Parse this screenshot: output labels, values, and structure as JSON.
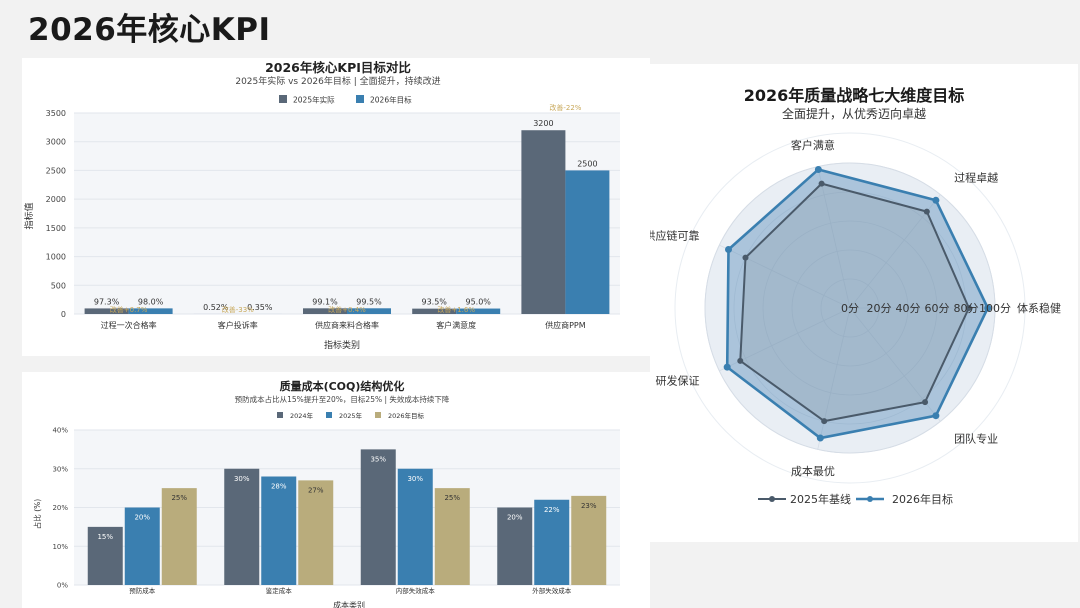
{
  "page_title": "2026年核心KPI",
  "colors": {
    "actual_2025": "#5a6878",
    "target_2026": "#3a7fb0",
    "y2024": "#5a6878",
    "y2025": "#3a7fb0",
    "target2026_coq": "#b9ac7c",
    "radar_base": "#4a5a6a",
    "radar_target": "#3a7fb0",
    "improve_label": "#c8a85a"
  },
  "chart_data": [
    {
      "id": "kpi",
      "type": "bar",
      "title": "2026年核心KPI目标对比",
      "subtitle": "2025年实际 vs 2026年目标 | 全面提升，持续改进",
      "xlabel": "指标类别",
      "ylabel": "指标值",
      "ylim": [
        0,
        3500
      ],
      "yticks": [
        0,
        500,
        1000,
        1500,
        2000,
        2500,
        3000,
        3500
      ],
      "categories": [
        "过程一次合格率",
        "客户投诉率",
        "供应商来料合格率",
        "客户满意度",
        "供应商PPM"
      ],
      "series": [
        {
          "name": "2025年实际",
          "values": [
            97.3,
            0.52,
            99.1,
            93.5,
            3200
          ],
          "labels": [
            "97.3%",
            "0.52%",
            "99.1%",
            "93.5%",
            "3200"
          ]
        },
        {
          "name": "2026年目标",
          "values": [
            98.0,
            0.35,
            99.5,
            95.0,
            2500
          ],
          "labels": [
            "98.0%",
            "0.35%",
            "99.5%",
            "95.0%",
            "2500"
          ]
        }
      ],
      "improvements": [
        "改善+0.7%",
        "改善-33%",
        "改善+0.4%",
        "改善+1.6%",
        "改善-22%"
      ]
    },
    {
      "id": "coq",
      "type": "bar",
      "title": "质量成本(COQ)结构优化",
      "subtitle": "预防成本占比从15%提升至20%，目标25% | 失效成本持续下降",
      "xlabel": "成本类别",
      "ylabel": "占比 (%)",
      "ylim": [
        0,
        40
      ],
      "yticks": [
        0,
        10,
        20,
        30,
        40
      ],
      "ytick_labels": [
        "0%",
        "10%",
        "20%",
        "30%",
        "40%"
      ],
      "categories": [
        "预防成本",
        "鉴定成本",
        "内部失效成本",
        "外部失效成本"
      ],
      "series": [
        {
          "name": "2024年",
          "values": [
            15,
            30,
            35,
            20
          ],
          "labels": [
            "15%",
            "30%",
            "35%",
            "20%"
          ]
        },
        {
          "name": "2025年",
          "values": [
            20,
            28,
            30,
            22
          ],
          "labels": [
            "20%",
            "28%",
            "30%",
            "22%"
          ]
        },
        {
          "name": "2026年目标",
          "values": [
            25,
            27,
            25,
            23
          ],
          "labels": [
            "25%",
            "27%",
            "25%",
            "23%"
          ]
        }
      ]
    },
    {
      "id": "radar",
      "type": "radar",
      "title": "2026年质量战略七大维度目标",
      "subtitle": "全面提升，从优秀迈向卓越",
      "range": [
        0,
        100
      ],
      "rticks": [
        0,
        20,
        40,
        60,
        80,
        100
      ],
      "rtick_labels": [
        "0分",
        "20分",
        "40分",
        "60分",
        "80分",
        "100分"
      ],
      "axes": [
        "体系稳健",
        "过程卓越",
        "客户满意",
        "供应链可靠",
        "研发保证",
        "成本最优",
        "团队专业"
      ],
      "series": [
        {
          "name": "2025年基线",
          "values": [
            82,
            85,
            88,
            80,
            84,
            80,
            83
          ]
        },
        {
          "name": "2026年目标",
          "values": [
            95,
            95,
            98,
            93,
            94,
            92,
            95
          ]
        }
      ]
    }
  ]
}
